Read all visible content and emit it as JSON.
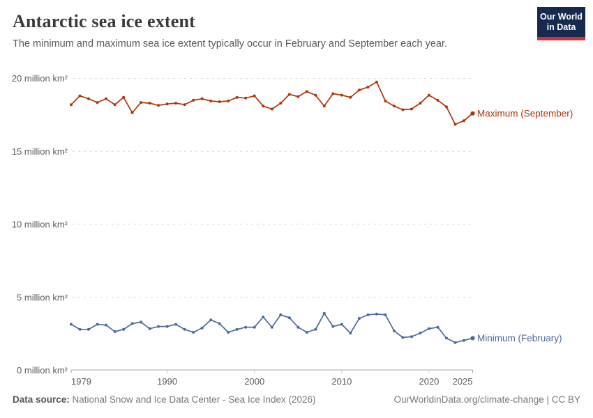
{
  "header": {
    "title": "Antarctic sea ice extent",
    "subtitle": "The minimum and maximum sea ice extent typically occur in February and September each year."
  },
  "logo": {
    "line1": "Our World",
    "line2": "in Data",
    "background_color": "#16294e",
    "accent_color": "#d22e3e"
  },
  "chart_data": {
    "type": "line",
    "title": "Antarctic sea ice extent",
    "xlabel": "",
    "ylabel": "million km²",
    "ylim": [
      0,
      20
    ],
    "xlim": [
      1979,
      2025
    ],
    "grid": "horizontal-dashed",
    "legend_position": "line-end-labels",
    "x": [
      1979,
      1980,
      1981,
      1982,
      1983,
      1984,
      1985,
      1986,
      1987,
      1988,
      1989,
      1990,
      1991,
      1992,
      1993,
      1994,
      1995,
      1996,
      1997,
      1998,
      1999,
      2000,
      2001,
      2002,
      2003,
      2004,
      2005,
      2006,
      2007,
      2008,
      2009,
      2010,
      2011,
      2012,
      2013,
      2014,
      2015,
      2016,
      2017,
      2018,
      2019,
      2020,
      2021,
      2022,
      2023,
      2024,
      2025
    ],
    "series": [
      {
        "name": "Maximum (September)",
        "color": "#B13507",
        "values": [
          18.2,
          18.8,
          18.6,
          18.35,
          18.6,
          18.2,
          18.7,
          17.65,
          18.35,
          18.3,
          18.15,
          18.25,
          18.3,
          18.2,
          18.5,
          18.6,
          18.45,
          18.4,
          18.45,
          18.7,
          18.65,
          18.8,
          18.1,
          17.9,
          18.3,
          18.9,
          18.75,
          19.1,
          18.85,
          18.1,
          18.95,
          18.85,
          18.7,
          19.2,
          19.4,
          19.75,
          18.45,
          18.1,
          17.85,
          17.9,
          18.3,
          18.85,
          18.5,
          18.05,
          16.85,
          17.1,
          17.6
        ]
      },
      {
        "name": "Minimum (February)",
        "color": "#4C6A9C",
        "values": [
          3.15,
          2.8,
          2.8,
          3.15,
          3.1,
          2.65,
          2.8,
          3.2,
          3.3,
          2.85,
          3.0,
          3.0,
          3.15,
          2.8,
          2.6,
          2.9,
          3.45,
          3.2,
          2.6,
          2.8,
          2.95,
          2.95,
          3.65,
          2.95,
          3.8,
          3.6,
          2.95,
          2.6,
          2.8,
          3.9,
          3.0,
          3.15,
          2.55,
          3.55,
          3.8,
          3.85,
          3.8,
          2.7,
          2.25,
          2.3,
          2.55,
          2.85,
          2.95,
          2.2,
          1.9,
          2.05,
          2.2
        ]
      }
    ],
    "yticks": [
      {
        "value": 0,
        "label": "0 million km²"
      },
      {
        "value": 5,
        "label": "5 million km²"
      },
      {
        "value": 10,
        "label": "10 million km²"
      },
      {
        "value": 15,
        "label": "15 million km²"
      },
      {
        "value": 20,
        "label": "20 million km²"
      }
    ],
    "xticks": [
      {
        "value": 1979,
        "label": "1979"
      },
      {
        "value": 1990,
        "label": "1990"
      },
      {
        "value": 2000,
        "label": "2000"
      },
      {
        "value": 2010,
        "label": "2010"
      },
      {
        "value": 2020,
        "label": "2020"
      },
      {
        "value": 2025,
        "label": "2025"
      }
    ]
  },
  "footer": {
    "source_label": "Data source:",
    "source_text": " National Snow and Ice Data Center - Sea Ice Index (2026)",
    "attribution": "OurWorldinData.org/climate-change | CC BY"
  }
}
